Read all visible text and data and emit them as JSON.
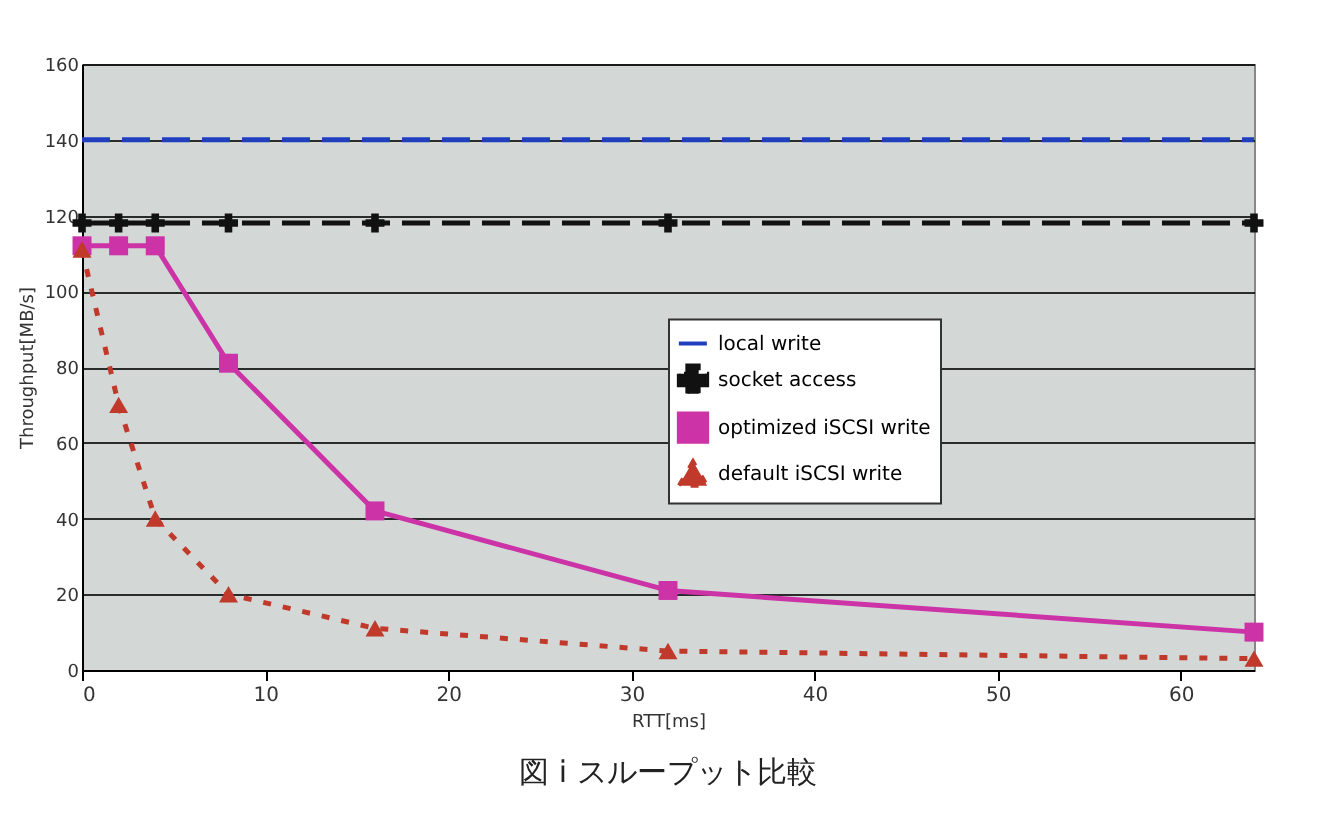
{
  "chart_data": {
    "type": "line",
    "title": "図 i スループット比較",
    "xlabel": "RTT[ms]",
    "ylabel": "Throughput[MB/s]",
    "xlim": [
      0,
      64
    ],
    "xticks": [
      0,
      10,
      20,
      30,
      40,
      50,
      60
    ],
    "ylim": [
      0,
      160
    ],
    "yticks": [
      0,
      20,
      40,
      60,
      80,
      100,
      120,
      140,
      160
    ],
    "grid": "y",
    "legend": "right",
    "series": [
      {
        "name": "local write",
        "color": "#1f3fbf",
        "line_style": "dashed",
        "marker": "none",
        "x": [
          0,
          64
        ],
        "values": [
          140,
          140
        ]
      },
      {
        "name": "socket access",
        "color": "#111111",
        "line_style": "dashed",
        "marker": "cross",
        "x": [
          0,
          2,
          4,
          8,
          16,
          32,
          64
        ],
        "values": [
          118,
          118,
          118,
          118,
          118,
          118,
          118
        ]
      },
      {
        "name": "optimized iSCSI write",
        "color": "#cc33a6",
        "line_style": "solid",
        "marker": "square",
        "x": [
          0,
          2,
          4,
          8,
          16,
          32,
          64
        ],
        "values": [
          112,
          112,
          112,
          81,
          42,
          21,
          10
        ]
      },
      {
        "name": "default iSCSI write",
        "color": "#c0392b",
        "line_style": "dotted",
        "marker": "triangle",
        "x": [
          0,
          2,
          4,
          8,
          16,
          32,
          64
        ],
        "values": [
          111,
          70,
          40,
          20,
          11,
          5,
          3
        ]
      }
    ]
  }
}
